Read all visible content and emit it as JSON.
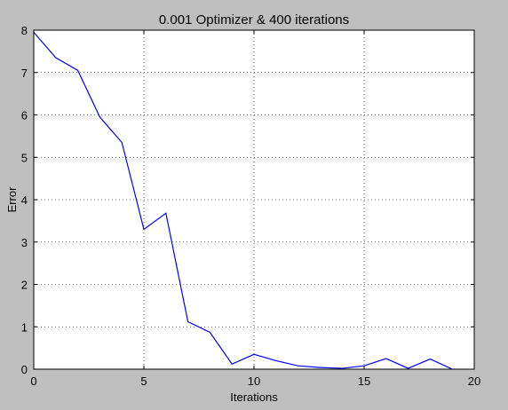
{
  "chart_data": {
    "type": "line",
    "title": "0.001 Optimizer & 400 iterations",
    "xlabel": "Iterations",
    "ylabel": "Error",
    "xlim": [
      0,
      20
    ],
    "ylim": [
      0,
      8
    ],
    "xticks": [
      0,
      5,
      10,
      15,
      20
    ],
    "yticks": [
      0,
      1,
      2,
      3,
      4,
      5,
      6,
      7,
      8
    ],
    "grid": true,
    "series": [
      {
        "color": "#0000ff",
        "x": [
          0,
          1,
          2,
          3,
          4,
          5,
          6,
          7,
          8,
          9,
          10,
          11,
          12,
          13,
          14,
          15,
          16,
          17,
          18,
          19
        ],
        "y": [
          7.95,
          7.35,
          7.05,
          5.95,
          5.35,
          3.3,
          3.68,
          1.12,
          0.87,
          0.12,
          0.35,
          0.2,
          0.08,
          0.04,
          0.02,
          0.08,
          0.25,
          0.02,
          0.24,
          0.0
        ]
      }
    ]
  }
}
